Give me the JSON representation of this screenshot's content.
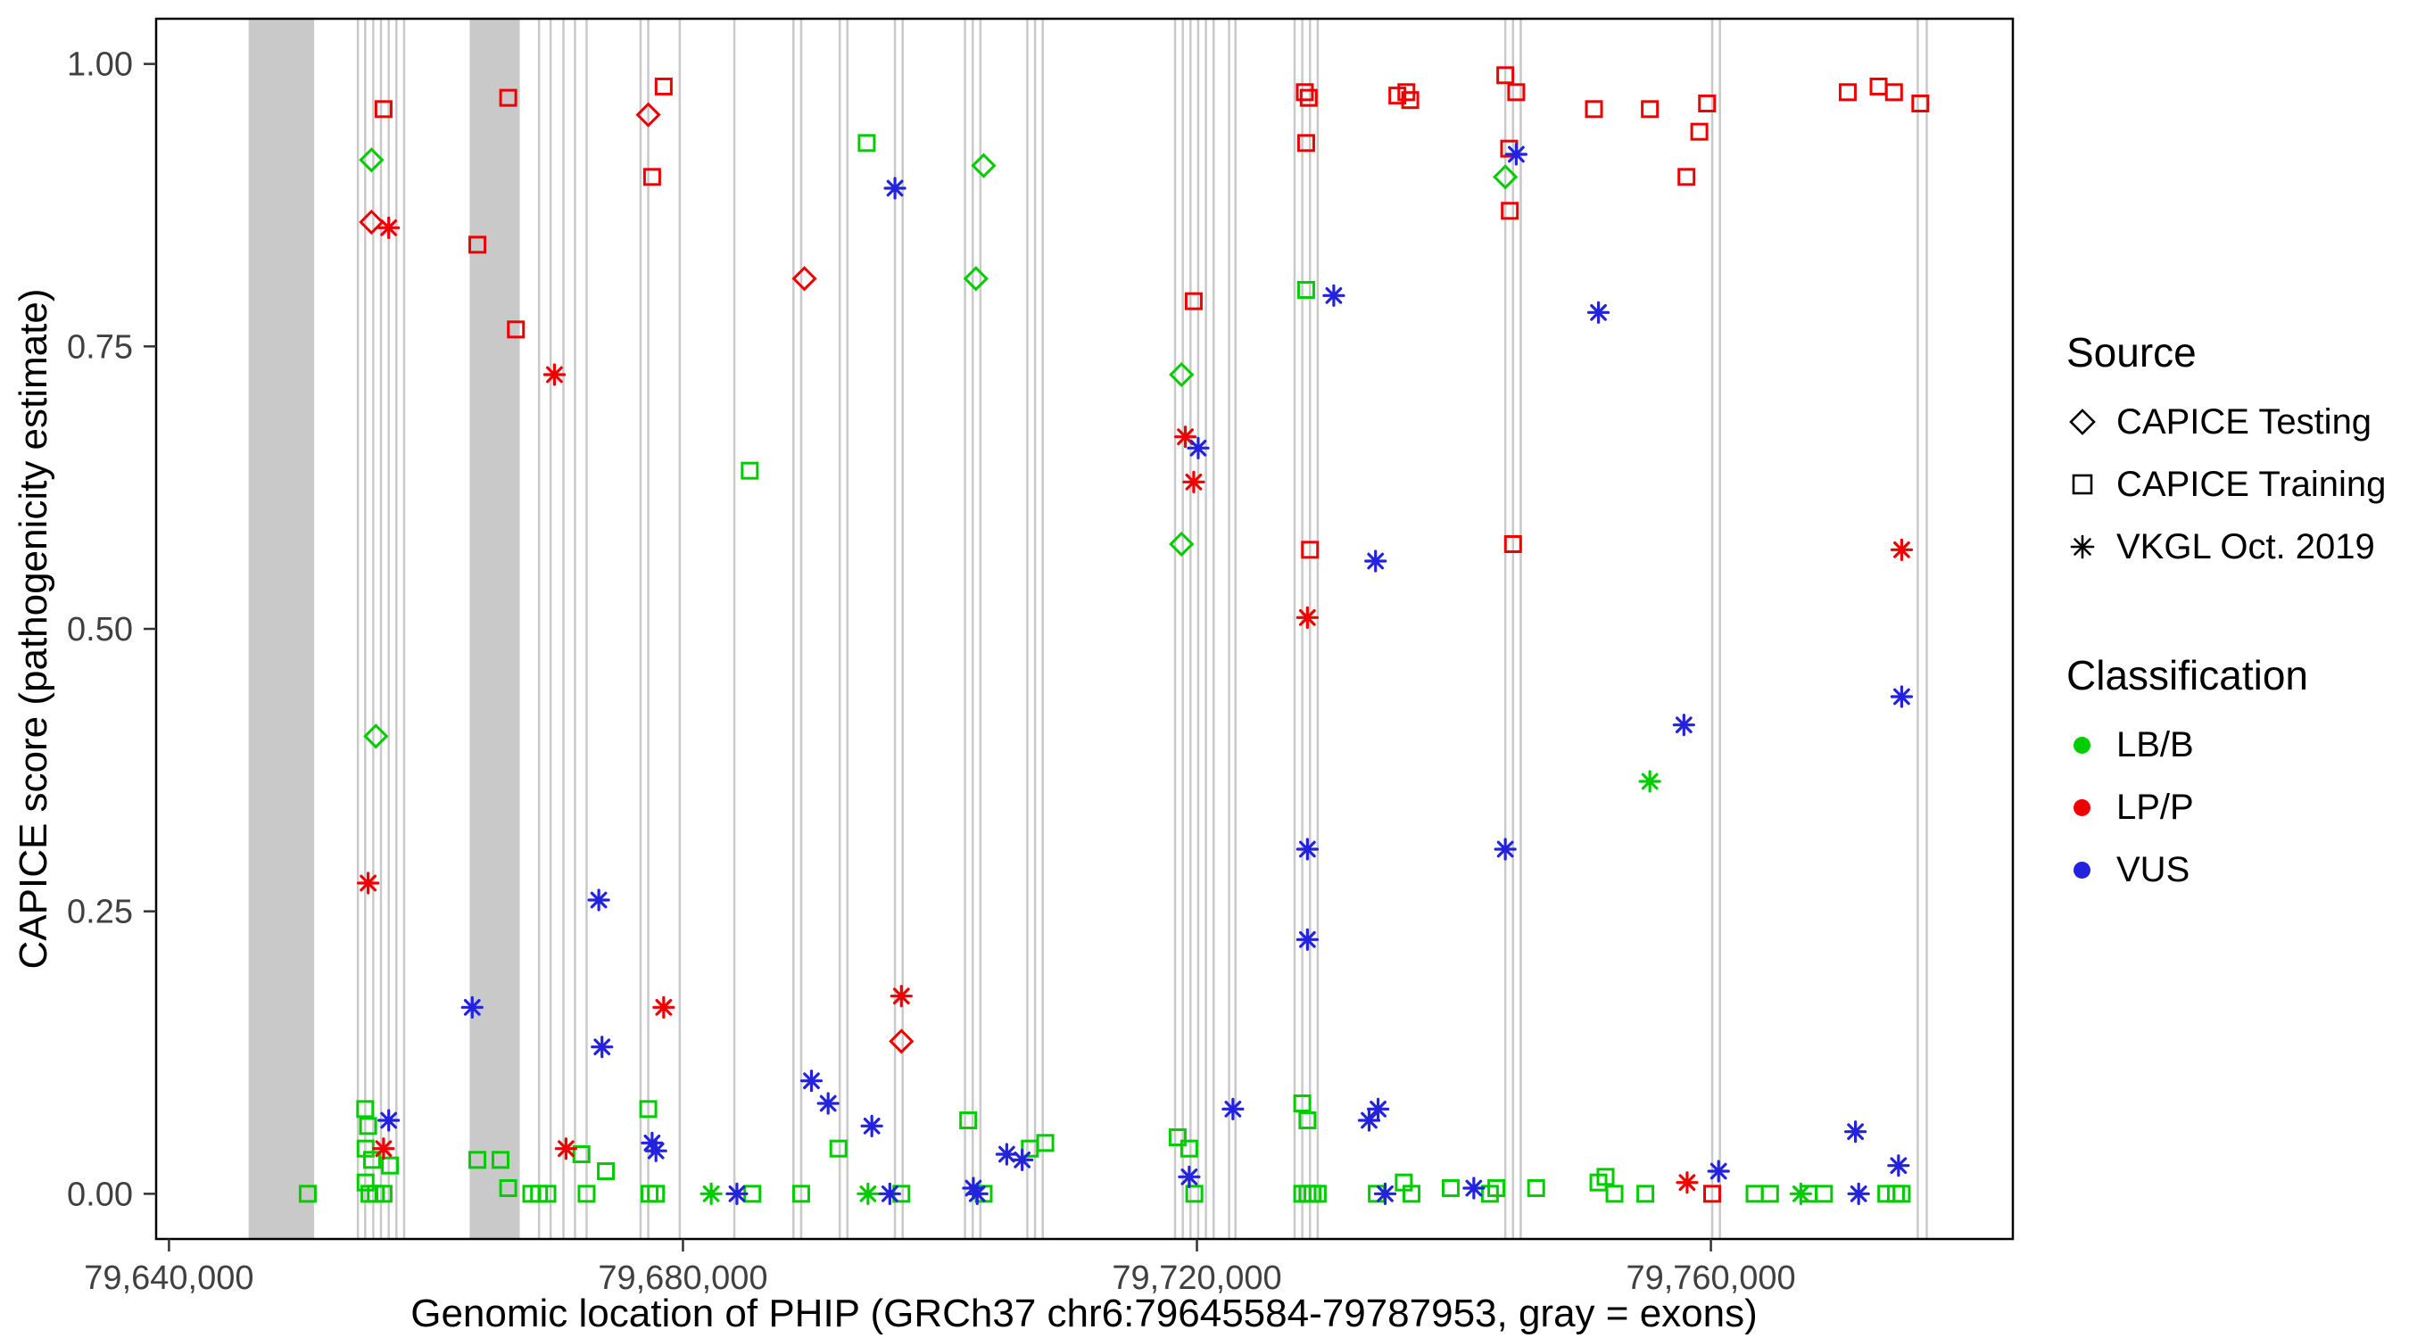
{
  "colors": {
    "LB": "#00CD00",
    "LP": "#EE0000",
    "VUS": "#2323DD",
    "exon_band": "#c9c9c9",
    "exon_line": "#c9c9c9",
    "axis_text": "#404040",
    "axis_line": "#333333",
    "panel_border": "#000000"
  },
  "chart_data": {
    "type": "scatter",
    "title": "",
    "xlabel": "Genomic location of PHIP (GRCh37 chr6:79645584-79787953, gray = exons)",
    "ylabel": "CAPICE score (pathogenicity estimate)",
    "x_ticks": [
      79640000,
      79680000,
      79720000,
      79760000
    ],
    "x_tick_labels": [
      "79,640,000",
      "79,680,000",
      "79,720,000",
      "79,760,000"
    ],
    "y_ticks": [
      0,
      0.25,
      0.5,
      0.75,
      1
    ],
    "y_tick_labels": [
      "0.00",
      "0.25",
      "0.50",
      "0.75",
      "1.00"
    ],
    "xlim": [
      79639000,
      79783500
    ],
    "ylim": [
      -0.04,
      1.04
    ],
    "legend": {
      "source": {
        "title": "Source",
        "items": [
          {
            "label": "CAPICE Testing",
            "shape": "diamond"
          },
          {
            "label": "CAPICE Training",
            "shape": "square"
          },
          {
            "label": "VKGL Oct. 2019",
            "shape": "asterisk"
          }
        ]
      },
      "classification": {
        "title": "Classification",
        "items": [
          {
            "label": "LB/B",
            "cls": "LB"
          },
          {
            "label": "LP/P",
            "cls": "LP"
          },
          {
            "label": "VUS",
            "cls": "VUS"
          }
        ]
      }
    },
    "exons": {
      "wide": [
        [
          79646200,
          79651300
        ],
        [
          79663400,
          79667300
        ]
      ],
      "narrow": [
        79654700,
        79655270,
        79655900,
        79656500,
        79657100,
        79657700,
        79658300,
        79668800,
        79669700,
        79670700,
        79671600,
        79672500,
        79676700,
        79677300,
        79679750,
        79684000,
        79688600,
        79689200,
        79692200,
        79692800,
        79696500,
        79697100,
        79701950,
        79702550,
        79703150,
        79706800,
        79707400,
        79708000,
        79718300,
        79718900,
        79719500,
        79720100,
        79720700,
        79721300,
        79722500,
        79723000,
        79727600,
        79728200,
        79728800,
        79729400,
        79744000,
        79744600,
        79745200,
        79760100,
        79760700,
        79776100,
        79776800
      ]
    },
    "points": [
      {
        "x": 79655760,
        "y": 0.915,
        "src": "test",
        "cls": "LB"
      },
      {
        "x": 79655760,
        "y": 0.86,
        "src": "test",
        "cls": "LP"
      },
      {
        "x": 79656100,
        "y": 0.405,
        "src": "test",
        "cls": "LB"
      },
      {
        "x": 79677300,
        "y": 0.955,
        "src": "test",
        "cls": "LP"
      },
      {
        "x": 79689450,
        "y": 0.81,
        "src": "test",
        "cls": "LP"
      },
      {
        "x": 79697000,
        "y": 0.135,
        "src": "test",
        "cls": "LP"
      },
      {
        "x": 79703400,
        "y": 0.91,
        "src": "test",
        "cls": "LB"
      },
      {
        "x": 79702800,
        "y": 0.81,
        "src": "test",
        "cls": "LB"
      },
      {
        "x": 79718800,
        "y": 0.725,
        "src": "test",
        "cls": "LB"
      },
      {
        "x": 79718800,
        "y": 0.575,
        "src": "test",
        "cls": "LB"
      },
      {
        "x": 79744000,
        "y": 0.9,
        "src": "test",
        "cls": "LB"
      },
      {
        "x": 79656700,
        "y": 0.96,
        "src": "train",
        "cls": "LP"
      },
      {
        "x": 79664000,
        "y": 0.84,
        "src": "train",
        "cls": "LP"
      },
      {
        "x": 79666400,
        "y": 0.97,
        "src": "train",
        "cls": "LP"
      },
      {
        "x": 79667000,
        "y": 0.765,
        "src": "train",
        "cls": "LP"
      },
      {
        "x": 79677600,
        "y": 0.9,
        "src": "train",
        "cls": "LP"
      },
      {
        "x": 79678500,
        "y": 0.98,
        "src": "train",
        "cls": "LP"
      },
      {
        "x": 79719750,
        "y": 0.79,
        "src": "train",
        "cls": "LP"
      },
      {
        "x": 79728400,
        "y": 0.975,
        "src": "train",
        "cls": "LP"
      },
      {
        "x": 79728700,
        "y": 0.97,
        "src": "train",
        "cls": "LP"
      },
      {
        "x": 79728500,
        "y": 0.93,
        "src": "train",
        "cls": "LP"
      },
      {
        "x": 79728800,
        "y": 0.57,
        "src": "train",
        "cls": "LP"
      },
      {
        "x": 79735600,
        "y": 0.972,
        "src": "train",
        "cls": "LP"
      },
      {
        "x": 79736300,
        "y": 0.975,
        "src": "train",
        "cls": "LP"
      },
      {
        "x": 79736600,
        "y": 0.968,
        "src": "train",
        "cls": "LP"
      },
      {
        "x": 79744000,
        "y": 0.99,
        "src": "train",
        "cls": "LP"
      },
      {
        "x": 79744850,
        "y": 0.975,
        "src": "train",
        "cls": "LP"
      },
      {
        "x": 79744300,
        "y": 0.925,
        "src": "train",
        "cls": "LP"
      },
      {
        "x": 79744350,
        "y": 0.87,
        "src": "train",
        "cls": "LP"
      },
      {
        "x": 79744600,
        "y": 0.575,
        "src": "train",
        "cls": "LP"
      },
      {
        "x": 79750900,
        "y": 0.96,
        "src": "train",
        "cls": "LP"
      },
      {
        "x": 79755250,
        "y": 0.96,
        "src": "train",
        "cls": "LP"
      },
      {
        "x": 79758100,
        "y": 0.9,
        "src": "train",
        "cls": "LP"
      },
      {
        "x": 79759100,
        "y": 0.94,
        "src": "train",
        "cls": "LP"
      },
      {
        "x": 79759700,
        "y": 0.965,
        "src": "train",
        "cls": "LP"
      },
      {
        "x": 79760100,
        "y": 0.0,
        "src": "train",
        "cls": "LP"
      },
      {
        "x": 79770650,
        "y": 0.975,
        "src": "train",
        "cls": "LP"
      },
      {
        "x": 79773050,
        "y": 0.98,
        "src": "train",
        "cls": "LP"
      },
      {
        "x": 79774250,
        "y": 0.975,
        "src": "train",
        "cls": "LP"
      },
      {
        "x": 79776300,
        "y": 0.965,
        "src": "train",
        "cls": "LP"
      },
      {
        "x": 79650800,
        "y": 0.0,
        "src": "train",
        "cls": "LB"
      },
      {
        "x": 79655270,
        "y": 0.075,
        "src": "train",
        "cls": "LB"
      },
      {
        "x": 79655500,
        "y": 0.06,
        "src": "train",
        "cls": "LB"
      },
      {
        "x": 79655300,
        "y": 0.04,
        "src": "train",
        "cls": "LB"
      },
      {
        "x": 79655800,
        "y": 0.03,
        "src": "train",
        "cls": "LB"
      },
      {
        "x": 79655300,
        "y": 0.01,
        "src": "train",
        "cls": "LB"
      },
      {
        "x": 79655600,
        "y": 0.0,
        "src": "train",
        "cls": "LB"
      },
      {
        "x": 79656100,
        "y": 0.0,
        "src": "train",
        "cls": "LB"
      },
      {
        "x": 79656700,
        "y": 0.0,
        "src": "train",
        "cls": "LB"
      },
      {
        "x": 79657200,
        "y": 0.025,
        "src": "train",
        "cls": "LB"
      },
      {
        "x": 79664000,
        "y": 0.03,
        "src": "train",
        "cls": "LB"
      },
      {
        "x": 79665800,
        "y": 0.03,
        "src": "train",
        "cls": "LB"
      },
      {
        "x": 79666400,
        "y": 0.005,
        "src": "train",
        "cls": "LB"
      },
      {
        "x": 79668200,
        "y": 0.0,
        "src": "train",
        "cls": "LB"
      },
      {
        "x": 79668800,
        "y": 0.0,
        "src": "train",
        "cls": "LB"
      },
      {
        "x": 79669450,
        "y": 0.0,
        "src": "train",
        "cls": "LB"
      },
      {
        "x": 79672100,
        "y": 0.035,
        "src": "train",
        "cls": "LB"
      },
      {
        "x": 79672500,
        "y": 0.0,
        "src": "train",
        "cls": "LB"
      },
      {
        "x": 79674000,
        "y": 0.02,
        "src": "train",
        "cls": "LB"
      },
      {
        "x": 79677300,
        "y": 0.075,
        "src": "train",
        "cls": "LB"
      },
      {
        "x": 79677400,
        "y": 0.0,
        "src": "train",
        "cls": "LB"
      },
      {
        "x": 79677900,
        "y": 0.0,
        "src": "train",
        "cls": "LB"
      },
      {
        "x": 79685200,
        "y": 0.64,
        "src": "train",
        "cls": "LB"
      },
      {
        "x": 79685400,
        "y": 0.0,
        "src": "train",
        "cls": "LB"
      },
      {
        "x": 79689200,
        "y": 0.0,
        "src": "train",
        "cls": "LB"
      },
      {
        "x": 79692100,
        "y": 0.04,
        "src": "train",
        "cls": "LB"
      },
      {
        "x": 79694300,
        "y": 0.93,
        "src": "train",
        "cls": "LB"
      },
      {
        "x": 79697000,
        "y": 0.0,
        "src": "train",
        "cls": "LB"
      },
      {
        "x": 79702200,
        "y": 0.065,
        "src": "train",
        "cls": "LB"
      },
      {
        "x": 79703400,
        "y": 0.0,
        "src": "train",
        "cls": "LB"
      },
      {
        "x": 79707000,
        "y": 0.04,
        "src": "train",
        "cls": "LB"
      },
      {
        "x": 79708200,
        "y": 0.045,
        "src": "train",
        "cls": "LB"
      },
      {
        "x": 79718500,
        "y": 0.05,
        "src": "train",
        "cls": "LB"
      },
      {
        "x": 79719400,
        "y": 0.04,
        "src": "train",
        "cls": "LB"
      },
      {
        "x": 79719800,
        "y": 0.0,
        "src": "train",
        "cls": "LB"
      },
      {
        "x": 79728500,
        "y": 0.8,
        "src": "train",
        "cls": "LB"
      },
      {
        "x": 79728200,
        "y": 0.08,
        "src": "train",
        "cls": "LB"
      },
      {
        "x": 79728600,
        "y": 0.065,
        "src": "train",
        "cls": "LB"
      },
      {
        "x": 79728200,
        "y": 0.0,
        "src": "train",
        "cls": "LB"
      },
      {
        "x": 79728600,
        "y": 0.0,
        "src": "train",
        "cls": "LB"
      },
      {
        "x": 79729000,
        "y": 0.0,
        "src": "train",
        "cls": "LB"
      },
      {
        "x": 79729400,
        "y": 0.0,
        "src": "train",
        "cls": "LB"
      },
      {
        "x": 79734000,
        "y": 0.0,
        "src": "train",
        "cls": "LB"
      },
      {
        "x": 79736100,
        "y": 0.01,
        "src": "train",
        "cls": "LB"
      },
      {
        "x": 79736700,
        "y": 0.0,
        "src": "train",
        "cls": "LB"
      },
      {
        "x": 79739750,
        "y": 0.005,
        "src": "train",
        "cls": "LB"
      },
      {
        "x": 79742800,
        "y": 0.0,
        "src": "train",
        "cls": "LB"
      },
      {
        "x": 79743300,
        "y": 0.005,
        "src": "train",
        "cls": "LB"
      },
      {
        "x": 79746400,
        "y": 0.005,
        "src": "train",
        "cls": "LB"
      },
      {
        "x": 79751250,
        "y": 0.01,
        "src": "train",
        "cls": "LB"
      },
      {
        "x": 79751800,
        "y": 0.015,
        "src": "train",
        "cls": "LB"
      },
      {
        "x": 79752500,
        "y": 0.0,
        "src": "train",
        "cls": "LB"
      },
      {
        "x": 79754900,
        "y": 0.0,
        "src": "train",
        "cls": "LB"
      },
      {
        "x": 79763400,
        "y": 0.0,
        "src": "train",
        "cls": "LB"
      },
      {
        "x": 79764600,
        "y": 0.0,
        "src": "train",
        "cls": "LB"
      },
      {
        "x": 79767600,
        "y": 0.0,
        "src": "train",
        "cls": "LB"
      },
      {
        "x": 79768800,
        "y": 0.0,
        "src": "train",
        "cls": "LB"
      },
      {
        "x": 79773650,
        "y": 0.0,
        "src": "train",
        "cls": "LB"
      },
      {
        "x": 79774400,
        "y": 0.0,
        "src": "train",
        "cls": "LB"
      },
      {
        "x": 79774850,
        "y": 0.0,
        "src": "train",
        "cls": "LB"
      },
      {
        "x": 79657100,
        "y": 0.855,
        "src": "vkgl",
        "cls": "LP"
      },
      {
        "x": 79655500,
        "y": 0.275,
        "src": "vkgl",
        "cls": "LP"
      },
      {
        "x": 79656700,
        "y": 0.04,
        "src": "vkgl",
        "cls": "LP"
      },
      {
        "x": 79670000,
        "y": 0.725,
        "src": "vkgl",
        "cls": "LP"
      },
      {
        "x": 79670900,
        "y": 0.04,
        "src": "vkgl",
        "cls": "LP"
      },
      {
        "x": 79678500,
        "y": 0.165,
        "src": "vkgl",
        "cls": "LP"
      },
      {
        "x": 79697000,
        "y": 0.175,
        "src": "vkgl",
        "cls": "LP"
      },
      {
        "x": 79719100,
        "y": 0.67,
        "src": "vkgl",
        "cls": "LP"
      },
      {
        "x": 79719750,
        "y": 0.63,
        "src": "vkgl",
        "cls": "LP"
      },
      {
        "x": 79728600,
        "y": 0.51,
        "src": "vkgl",
        "cls": "LP"
      },
      {
        "x": 79758150,
        "y": 0.01,
        "src": "vkgl",
        "cls": "LP"
      },
      {
        "x": 79774850,
        "y": 0.57,
        "src": "vkgl",
        "cls": "LP"
      },
      {
        "x": 79682200,
        "y": 0.0,
        "src": "vkgl",
        "cls": "LB"
      },
      {
        "x": 79694400,
        "y": 0.0,
        "src": "vkgl",
        "cls": "LB"
      },
      {
        "x": 79755250,
        "y": 0.365,
        "src": "vkgl",
        "cls": "LB"
      },
      {
        "x": 79767000,
        "y": 0.0,
        "src": "vkgl",
        "cls": "LB"
      },
      {
        "x": 79657100,
        "y": 0.065,
        "src": "vkgl",
        "cls": "VUS"
      },
      {
        "x": 79663600,
        "y": 0.165,
        "src": "vkgl",
        "cls": "VUS"
      },
      {
        "x": 79673450,
        "y": 0.26,
        "src": "vkgl",
        "cls": "VUS"
      },
      {
        "x": 79673700,
        "y": 0.13,
        "src": "vkgl",
        "cls": "VUS"
      },
      {
        "x": 79677600,
        "y": 0.045,
        "src": "vkgl",
        "cls": "VUS"
      },
      {
        "x": 79677900,
        "y": 0.038,
        "src": "vkgl",
        "cls": "VUS"
      },
      {
        "x": 79684200,
        "y": 0.0,
        "src": "vkgl",
        "cls": "VUS"
      },
      {
        "x": 79690000,
        "y": 0.1,
        "src": "vkgl",
        "cls": "VUS"
      },
      {
        "x": 79691300,
        "y": 0.08,
        "src": "vkgl",
        "cls": "VUS"
      },
      {
        "x": 79694700,
        "y": 0.06,
        "src": "vkgl",
        "cls": "VUS"
      },
      {
        "x": 79696100,
        "y": 0.0,
        "src": "vkgl",
        "cls": "VUS"
      },
      {
        "x": 79696500,
        "y": 0.89,
        "src": "vkgl",
        "cls": "VUS"
      },
      {
        "x": 79702600,
        "y": 0.005,
        "src": "vkgl",
        "cls": "VUS"
      },
      {
        "x": 79702900,
        "y": 0.0,
        "src": "vkgl",
        "cls": "VUS"
      },
      {
        "x": 79705200,
        "y": 0.035,
        "src": "vkgl",
        "cls": "VUS"
      },
      {
        "x": 79706400,
        "y": 0.03,
        "src": "vkgl",
        "cls": "VUS"
      },
      {
        "x": 79719400,
        "y": 0.015,
        "src": "vkgl",
        "cls": "VUS"
      },
      {
        "x": 79720100,
        "y": 0.66,
        "src": "vkgl",
        "cls": "VUS"
      },
      {
        "x": 79722800,
        "y": 0.075,
        "src": "vkgl",
        "cls": "VUS"
      },
      {
        "x": 79728600,
        "y": 0.305,
        "src": "vkgl",
        "cls": "VUS"
      },
      {
        "x": 79728600,
        "y": 0.225,
        "src": "vkgl",
        "cls": "VUS"
      },
      {
        "x": 79730650,
        "y": 0.795,
        "src": "vkgl",
        "cls": "VUS"
      },
      {
        "x": 79733400,
        "y": 0.065,
        "src": "vkgl",
        "cls": "VUS"
      },
      {
        "x": 79733900,
        "y": 0.56,
        "src": "vkgl",
        "cls": "VUS"
      },
      {
        "x": 79734100,
        "y": 0.075,
        "src": "vkgl",
        "cls": "VUS"
      },
      {
        "x": 79734650,
        "y": 0.0,
        "src": "vkgl",
        "cls": "VUS"
      },
      {
        "x": 79741550,
        "y": 0.005,
        "src": "vkgl",
        "cls": "VUS"
      },
      {
        "x": 79744000,
        "y": 0.305,
        "src": "vkgl",
        "cls": "VUS"
      },
      {
        "x": 79744850,
        "y": 0.92,
        "src": "vkgl",
        "cls": "VUS"
      },
      {
        "x": 79751250,
        "y": 0.78,
        "src": "vkgl",
        "cls": "VUS"
      },
      {
        "x": 79757900,
        "y": 0.415,
        "src": "vkgl",
        "cls": "VUS"
      },
      {
        "x": 79760600,
        "y": 0.02,
        "src": "vkgl",
        "cls": "VUS"
      },
      {
        "x": 79771250,
        "y": 0.055,
        "src": "vkgl",
        "cls": "VUS"
      },
      {
        "x": 79771500,
        "y": 0.0,
        "src": "vkgl",
        "cls": "VUS"
      },
      {
        "x": 79774600,
        "y": 0.025,
        "src": "vkgl",
        "cls": "VUS"
      },
      {
        "x": 79774850,
        "y": 0.44,
        "src": "vkgl",
        "cls": "VUS"
      }
    ]
  }
}
